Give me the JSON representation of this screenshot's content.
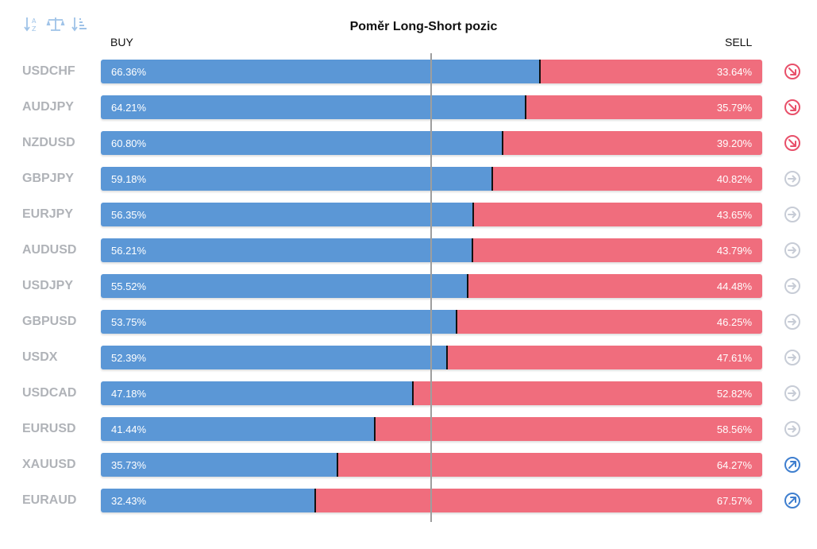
{
  "toolbar": {
    "icons": [
      "sort-alphabetical-icon",
      "balance-scale-icon",
      "sort-descending-icon"
    ],
    "icon_color": "#9fc3e8"
  },
  "chart_data": {
    "type": "bar",
    "title": "Poměr Long-Short pozic",
    "orientation": "horizontal-stacked-100",
    "buy_label": "BUY",
    "sell_label": "SELL",
    "categories": [
      "USDCHF",
      "AUDJPY",
      "NZDUSD",
      "GBPJPY",
      "EURJPY",
      "AUDUSD",
      "USDJPY",
      "GBPUSD",
      "USDX",
      "USDCAD",
      "EURUSD",
      "XAUUSD",
      "EURAUD"
    ],
    "series": [
      {
        "name": "BUY",
        "color": "#5b97d6",
        "values": [
          66.36,
          64.21,
          60.8,
          59.18,
          56.35,
          56.21,
          55.52,
          53.75,
          52.39,
          47.18,
          41.44,
          35.73,
          32.43
        ],
        "labels": [
          "66.36%",
          "64.21%",
          "60.80%",
          "59.18%",
          "56.35%",
          "56.21%",
          "55.52%",
          "53.75%",
          "52.39%",
          "47.18%",
          "41.44%",
          "35.73%",
          "32.43%"
        ]
      },
      {
        "name": "SELL",
        "color": "#f06d7d",
        "values": [
          33.64,
          35.79,
          39.2,
          40.82,
          43.65,
          43.79,
          44.48,
          46.25,
          47.61,
          52.82,
          58.56,
          64.27,
          67.57
        ],
        "labels": [
          "33.64%",
          "35.79%",
          "39.20%",
          "40.82%",
          "43.65%",
          "43.79%",
          "44.48%",
          "46.25%",
          "47.61%",
          "52.82%",
          "58.56%",
          "64.27%",
          "67.57%"
        ]
      }
    ],
    "indicators": [
      "down",
      "down",
      "down",
      "neutral",
      "neutral",
      "neutral",
      "neutral",
      "neutral",
      "neutral",
      "neutral",
      "neutral",
      "up",
      "up"
    ],
    "indicator_colors": {
      "down": "#e8506a",
      "neutral": "#c7ccd6",
      "up": "#3f7fcf"
    },
    "xlim": [
      0,
      100
    ],
    "reference_line": 50
  }
}
